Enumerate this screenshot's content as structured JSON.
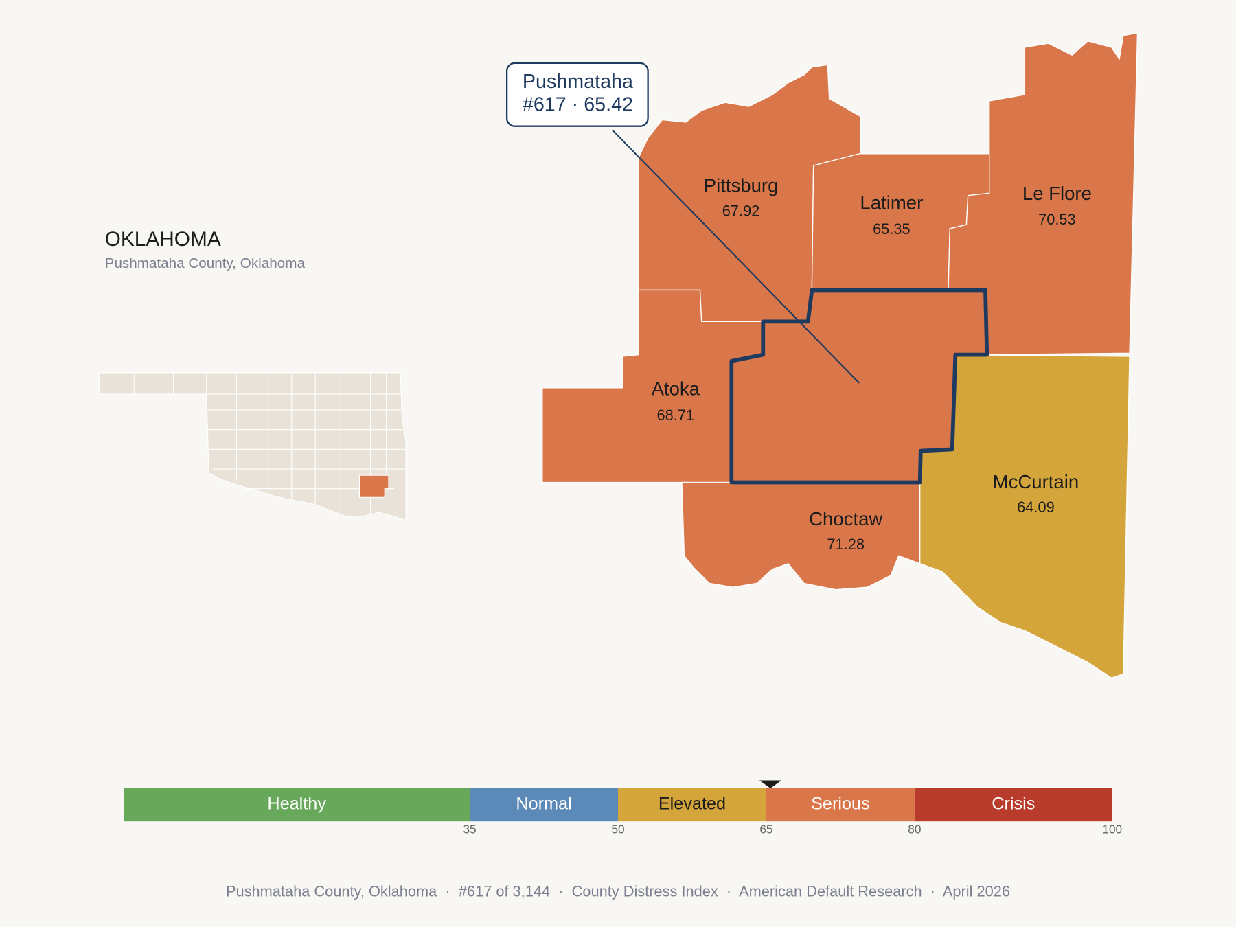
{
  "header": {
    "title": "OKLAHOMA",
    "subtitle": "Pushmataha County, Oklahoma"
  },
  "callout": {
    "line1": "Pushmataha",
    "line2": "#617 · 65.42"
  },
  "counties": [
    {
      "name": "Pittsburg",
      "value": 67.92,
      "color": "#d9774a"
    },
    {
      "name": "Latimer",
      "value": 65.35,
      "color": "#d9774a"
    },
    {
      "name": "Le Flore",
      "value": 70.53,
      "color": "#d9774a"
    },
    {
      "name": "Atoka",
      "value": 68.71,
      "color": "#d9774a"
    },
    {
      "name": "Choctaw",
      "value": 71.28,
      "color": "#d9774a"
    },
    {
      "name": "McCurtain",
      "value": 64.09,
      "color": "#d4a53a"
    }
  ],
  "focus_color": "#d9774a",
  "scale": {
    "lim": [
      0,
      100
    ],
    "ticks": [
      35,
      50,
      65,
      80,
      100
    ],
    "marker": 65.42,
    "segments": [
      {
        "label": "Healthy",
        "color": "#67a85a"
      },
      {
        "label": "Normal",
        "color": "#5b89b8"
      },
      {
        "label": "Elevated",
        "color": "#d4a53a"
      },
      {
        "label": "Serious",
        "color": "#d9774a"
      },
      {
        "label": "Crisis",
        "color": "#b83b2b"
      }
    ]
  },
  "footer": "Pushmataha County, Oklahoma  ·  #617 of 3,144  ·  County Distress Index  ·  American Default Research  ·  April 2026"
}
